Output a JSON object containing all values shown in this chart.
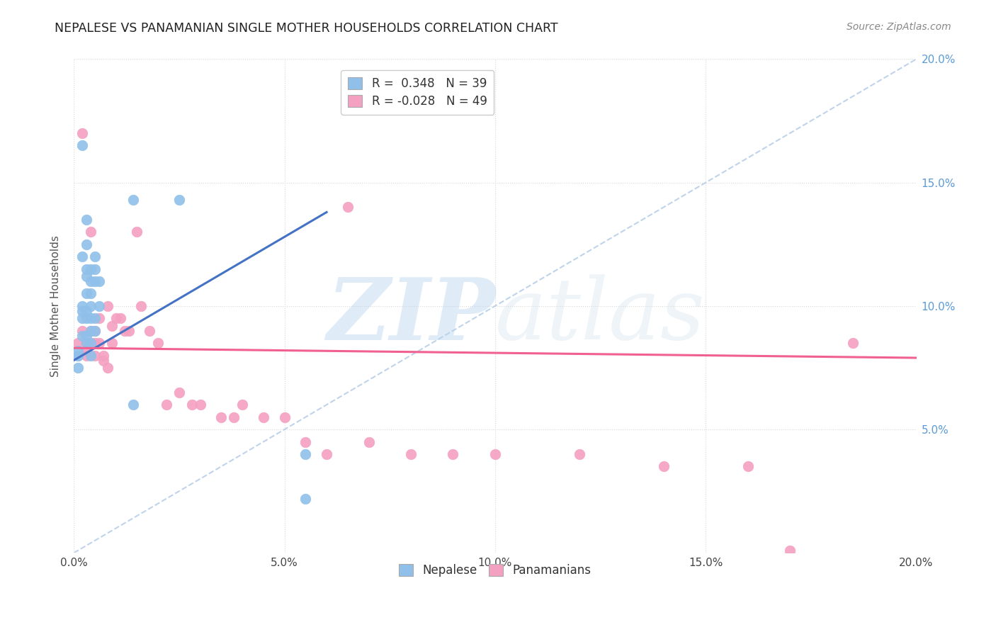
{
  "title": "NEPALESE VS PANAMANIAN SINGLE MOTHER HOUSEHOLDS CORRELATION CHART",
  "source": "Source: ZipAtlas.com",
  "ylabel": "Single Mother Households",
  "watermark_zip": "ZIP",
  "watermark_atlas": "atlas",
  "xlim": [
    0.0,
    0.2
  ],
  "ylim": [
    0.0,
    0.2
  ],
  "x_ticks": [
    0.0,
    0.05,
    0.1,
    0.15,
    0.2
  ],
  "y_ticks": [
    0.0,
    0.05,
    0.1,
    0.15,
    0.2
  ],
  "nepalese_color": "#90c0ea",
  "panamanian_color": "#f4a0c0",
  "nepalese_line_color": "#4472c4",
  "panamanian_line_color": "#f06090",
  "diagonal_color": "#b8cfe8",
  "background_color": "#ffffff",
  "grid_color": "#d8d8d8",
  "right_axis_color": "#5b9bd5",
  "legend_R_nep": "R = ",
  "legend_R_nep_val": " 0.348",
  "legend_N_nep": "N = 39",
  "legend_R_pan": "R = ",
  "legend_R_pan_val": "-0.028",
  "legend_N_pan": "N = 49",
  "nepalese_x": [
    0.001,
    0.001,
    0.001,
    0.001,
    0.002,
    0.002,
    0.002,
    0.002,
    0.002,
    0.002,
    0.003,
    0.003,
    0.003,
    0.003,
    0.003,
    0.003,
    0.003,
    0.003,
    0.003,
    0.004,
    0.004,
    0.004,
    0.004,
    0.004,
    0.004,
    0.004,
    0.004,
    0.005,
    0.005,
    0.005,
    0.005,
    0.005,
    0.006,
    0.006,
    0.014,
    0.014,
    0.025,
    0.055,
    0.055
  ],
  "nepalese_y": [
    0.08,
    0.08,
    0.082,
    0.075,
    0.165,
    0.12,
    0.1,
    0.098,
    0.095,
    0.088,
    0.135,
    0.125,
    0.115,
    0.112,
    0.105,
    0.098,
    0.095,
    0.088,
    0.085,
    0.115,
    0.11,
    0.105,
    0.1,
    0.095,
    0.09,
    0.085,
    0.08,
    0.12,
    0.115,
    0.11,
    0.095,
    0.09,
    0.11,
    0.1,
    0.143,
    0.06,
    0.143,
    0.022,
    0.04
  ],
  "panamanian_x": [
    0.001,
    0.002,
    0.002,
    0.003,
    0.003,
    0.003,
    0.004,
    0.004,
    0.004,
    0.005,
    0.005,
    0.005,
    0.006,
    0.006,
    0.007,
    0.007,
    0.008,
    0.008,
    0.009,
    0.009,
    0.01,
    0.011,
    0.012,
    0.013,
    0.015,
    0.016,
    0.018,
    0.02,
    0.022,
    0.025,
    0.028,
    0.03,
    0.035,
    0.038,
    0.04,
    0.045,
    0.05,
    0.055,
    0.06,
    0.065,
    0.07,
    0.08,
    0.09,
    0.1,
    0.12,
    0.14,
    0.16,
    0.17,
    0.185
  ],
  "panamanian_y": [
    0.085,
    0.17,
    0.09,
    0.085,
    0.082,
    0.08,
    0.13,
    0.09,
    0.085,
    0.09,
    0.085,
    0.08,
    0.095,
    0.085,
    0.08,
    0.078,
    0.1,
    0.075,
    0.092,
    0.085,
    0.095,
    0.095,
    0.09,
    0.09,
    0.13,
    0.1,
    0.09,
    0.085,
    0.06,
    0.065,
    0.06,
    0.06,
    0.055,
    0.055,
    0.06,
    0.055,
    0.055,
    0.045,
    0.04,
    0.14,
    0.045,
    0.04,
    0.04,
    0.04,
    0.04,
    0.035,
    0.035,
    0.001,
    0.085
  ],
  "nep_line_x0": 0.0,
  "nep_line_x1": 0.06,
  "nep_line_y0": 0.078,
  "nep_line_y1": 0.138,
  "pan_line_x0": 0.0,
  "pan_line_x1": 0.2,
  "pan_line_y0": 0.083,
  "pan_line_y1": 0.079
}
